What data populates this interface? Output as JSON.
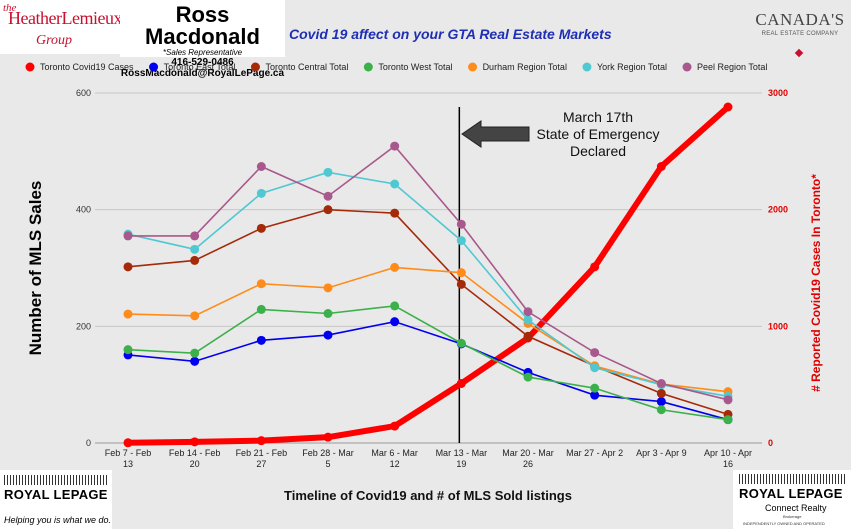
{
  "header": {
    "brand_left": {
      "small": "the",
      "name": "HeatherLemieux",
      "group": "Group"
    },
    "agent": {
      "name": "Ross Macdonald",
      "role": "*Sales Representative",
      "phone": "416-529-0486",
      "email": "RossMacdonald@RoyalLePage.ca"
    },
    "brand_right": {
      "name": "CANADA'S",
      "sub": "REAL ESTATE COMPANY"
    }
  },
  "footer": {
    "left_logo": {
      "name": "ROYAL LEPAGE",
      "tagline": "Helping you is what we do."
    },
    "right_logo": {
      "name": "ROYAL LEPAGE",
      "sub": "Connect Realty",
      "tiny": "Brokerage",
      "tiny2": "INDEPENDENTLY OWNED AND OPERATED"
    }
  },
  "chart_data": {
    "type": "line",
    "title": "Covid 19 affect on your GTA Real Estate Markets",
    "xlabel": "Timeline of Covid19 and # of MLS Sold listings",
    "ylabel": "Number of MLS Sales",
    "y2label": "# Reported Covid19 Cases In Toronto*",
    "ylim": [
      0,
      600
    ],
    "y2lim": [
      0,
      3000
    ],
    "yticks": [
      0,
      200,
      400,
      600
    ],
    "y2ticks": [
      0,
      1000,
      2000,
      3000
    ],
    "grid": true,
    "legend": "top",
    "categories": [
      [
        "Feb 7 - Feb",
        "13"
      ],
      [
        "Feb 14 - Feb",
        "20"
      ],
      [
        "Feb 21 - Feb",
        "27"
      ],
      [
        "Feb 28 - Mar",
        "5"
      ],
      [
        "Mar 6 - Mar",
        "12"
      ],
      [
        "Mar 13 - Mar",
        "19"
      ],
      [
        "Mar 20 - Mar",
        "26"
      ],
      [
        "Mar 27 - Apr 2",
        ""
      ],
      [
        "Apr 3 - Apr 9",
        ""
      ],
      [
        "Apr 10 - Apr",
        "16"
      ]
    ],
    "annotation": {
      "lines": [
        "March 17th",
        "State of Emergency",
        "Declared"
      ],
      "at_category": 5
    },
    "series": [
      {
        "name": "Toronto Covid19 Cases",
        "axis": "right",
        "color": "#ff0000",
        "values": [
          2,
          10,
          20,
          50,
          145,
          510,
          900,
          1510,
          2370,
          2880
        ]
      },
      {
        "name": "Toronto East Total",
        "axis": "left",
        "color": "#0000ee",
        "values": [
          151,
          140,
          176,
          185,
          208,
          170,
          121,
          82,
          71,
          40
        ]
      },
      {
        "name": "Toronto Central Total",
        "axis": "left",
        "color": "#a52a0a",
        "values": [
          302,
          313,
          368,
          400,
          394,
          272,
          183,
          132,
          85,
          49
        ]
      },
      {
        "name": "Toronto West Total",
        "axis": "left",
        "color": "#3cb04a",
        "values": [
          160,
          154,
          229,
          222,
          235,
          171,
          113,
          94,
          57,
          40
        ]
      },
      {
        "name": "Durham Region Total",
        "axis": "left",
        "color": "#ff8c1a",
        "values": [
          221,
          218,
          273,
          266,
          301,
          292,
          205,
          132,
          101,
          88
        ]
      },
      {
        "name": "York Region Total",
        "axis": "left",
        "color": "#50c8d2",
        "values": [
          358,
          332,
          428,
          464,
          444,
          347,
          211,
          129,
          100,
          80
        ]
      },
      {
        "name": "Peel Region Total",
        "axis": "left",
        "color": "#a8588c",
        "values": [
          355,
          355,
          474,
          423,
          509,
          375,
          225,
          155,
          102,
          74
        ]
      }
    ]
  }
}
